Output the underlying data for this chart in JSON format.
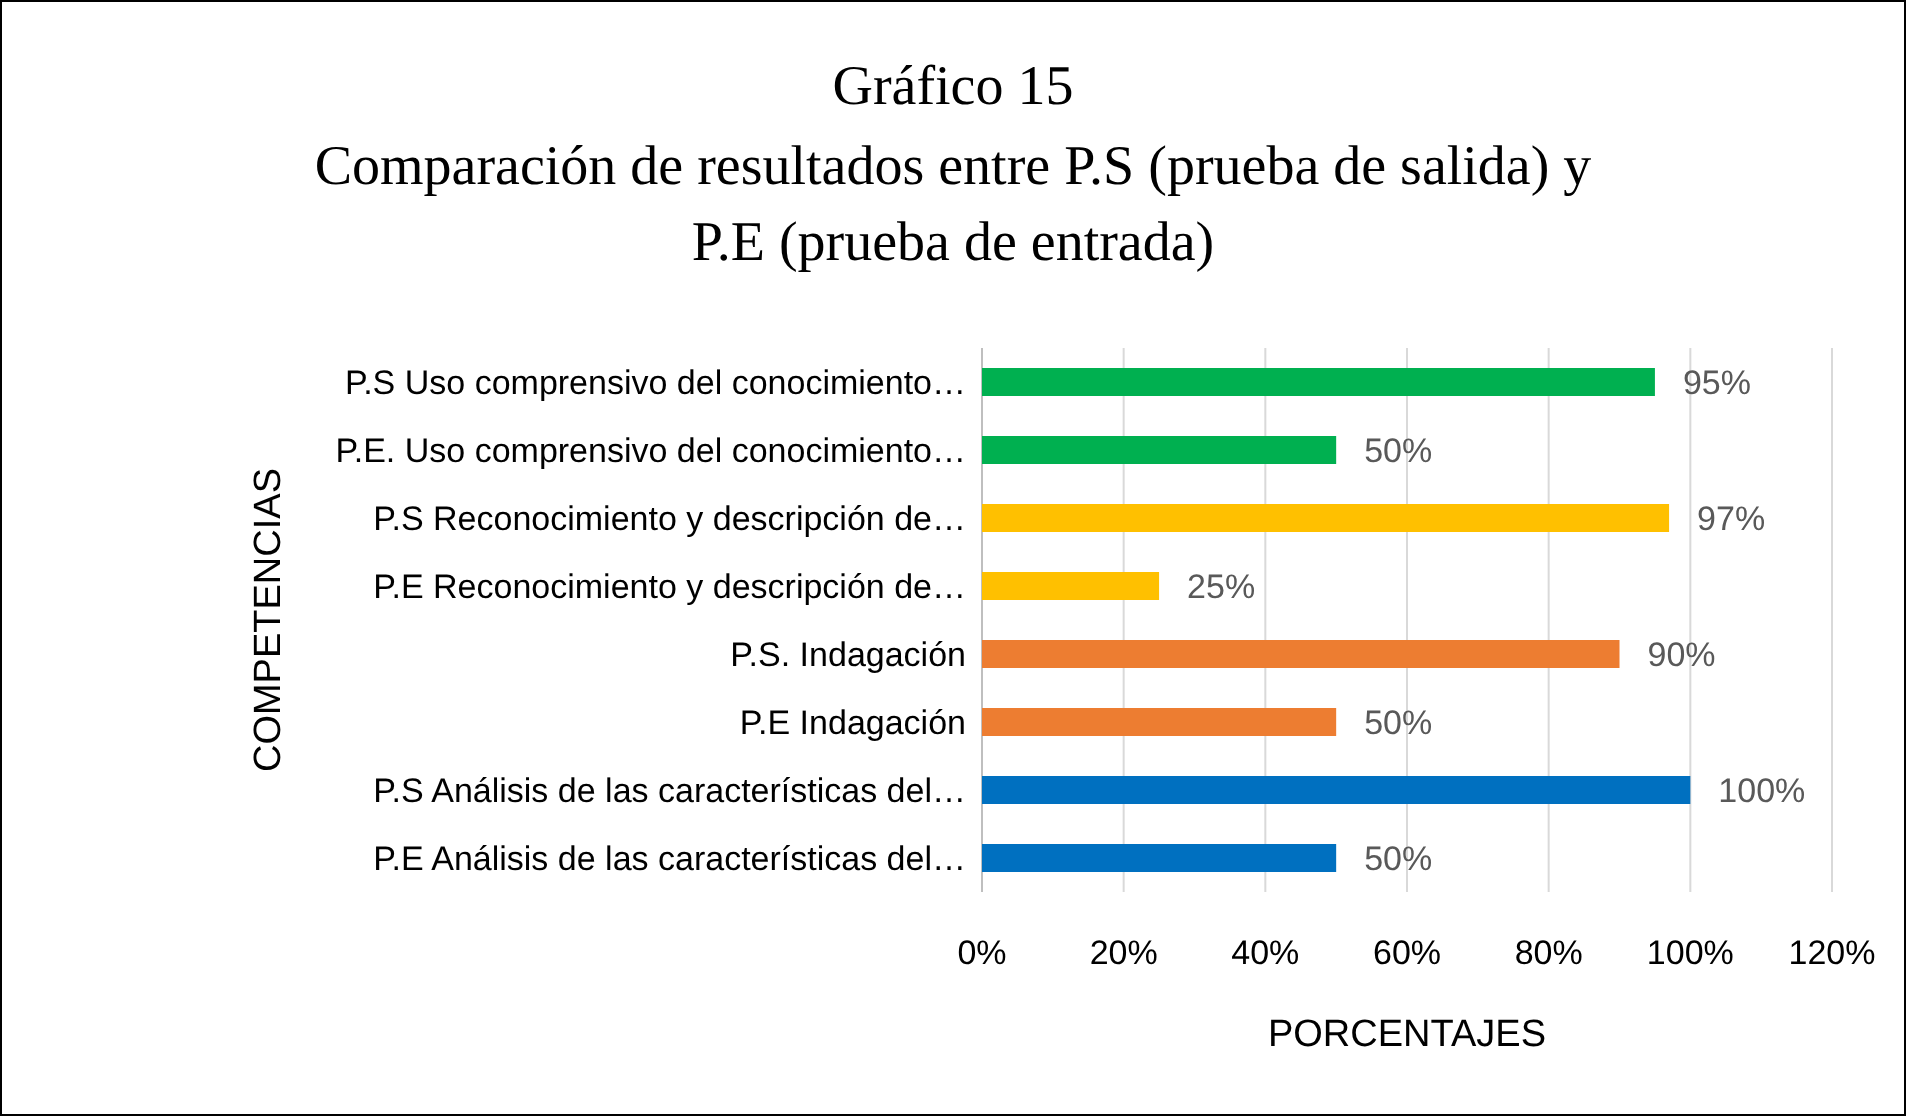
{
  "chart_data": {
    "type": "bar",
    "orientation": "horizontal",
    "title": "Gráfico 15",
    "subtitle": "Comparación de resultados entre P.S (prueba de salida) y P.E (prueba de entrada)",
    "xlabel": "PORCENTAJES",
    "ylabel": "COMPETENCIAS",
    "categories": [
      "P.S Uso comprensivo del conocimiento…",
      "P.E. Uso comprensivo del conocimiento…",
      "P.S Reconocimiento y descripción de…",
      "P.E Reconocimiento y descripción de…",
      "P.S. Indagación",
      "P.E Indagación",
      "P.S  Análisis de las características del…",
      "P.E Análisis de las características del…"
    ],
    "values": [
      95,
      50,
      97,
      25,
      90,
      50,
      100,
      50
    ],
    "colors": [
      "#00b050",
      "#00b050",
      "#ffc000",
      "#ffc000",
      "#ed7d31",
      "#ed7d31",
      "#0070c0",
      "#0070c0"
    ],
    "value_labels": [
      "95%",
      "50%",
      "97%",
      "25%",
      "90%",
      "50%",
      "100%",
      "50%"
    ],
    "xlim": [
      0,
      120
    ],
    "xticks": [
      {
        "value": 0,
        "label": "0%"
      },
      {
        "value": 20,
        "label": "20%"
      },
      {
        "value": 40,
        "label": "40%"
      },
      {
        "value": 60,
        "label": "60%"
      },
      {
        "value": 80,
        "label": "80%"
      },
      {
        "value": 100,
        "label": "100%"
      },
      {
        "value": 120,
        "label": "120%"
      }
    ],
    "grid": "x"
  }
}
